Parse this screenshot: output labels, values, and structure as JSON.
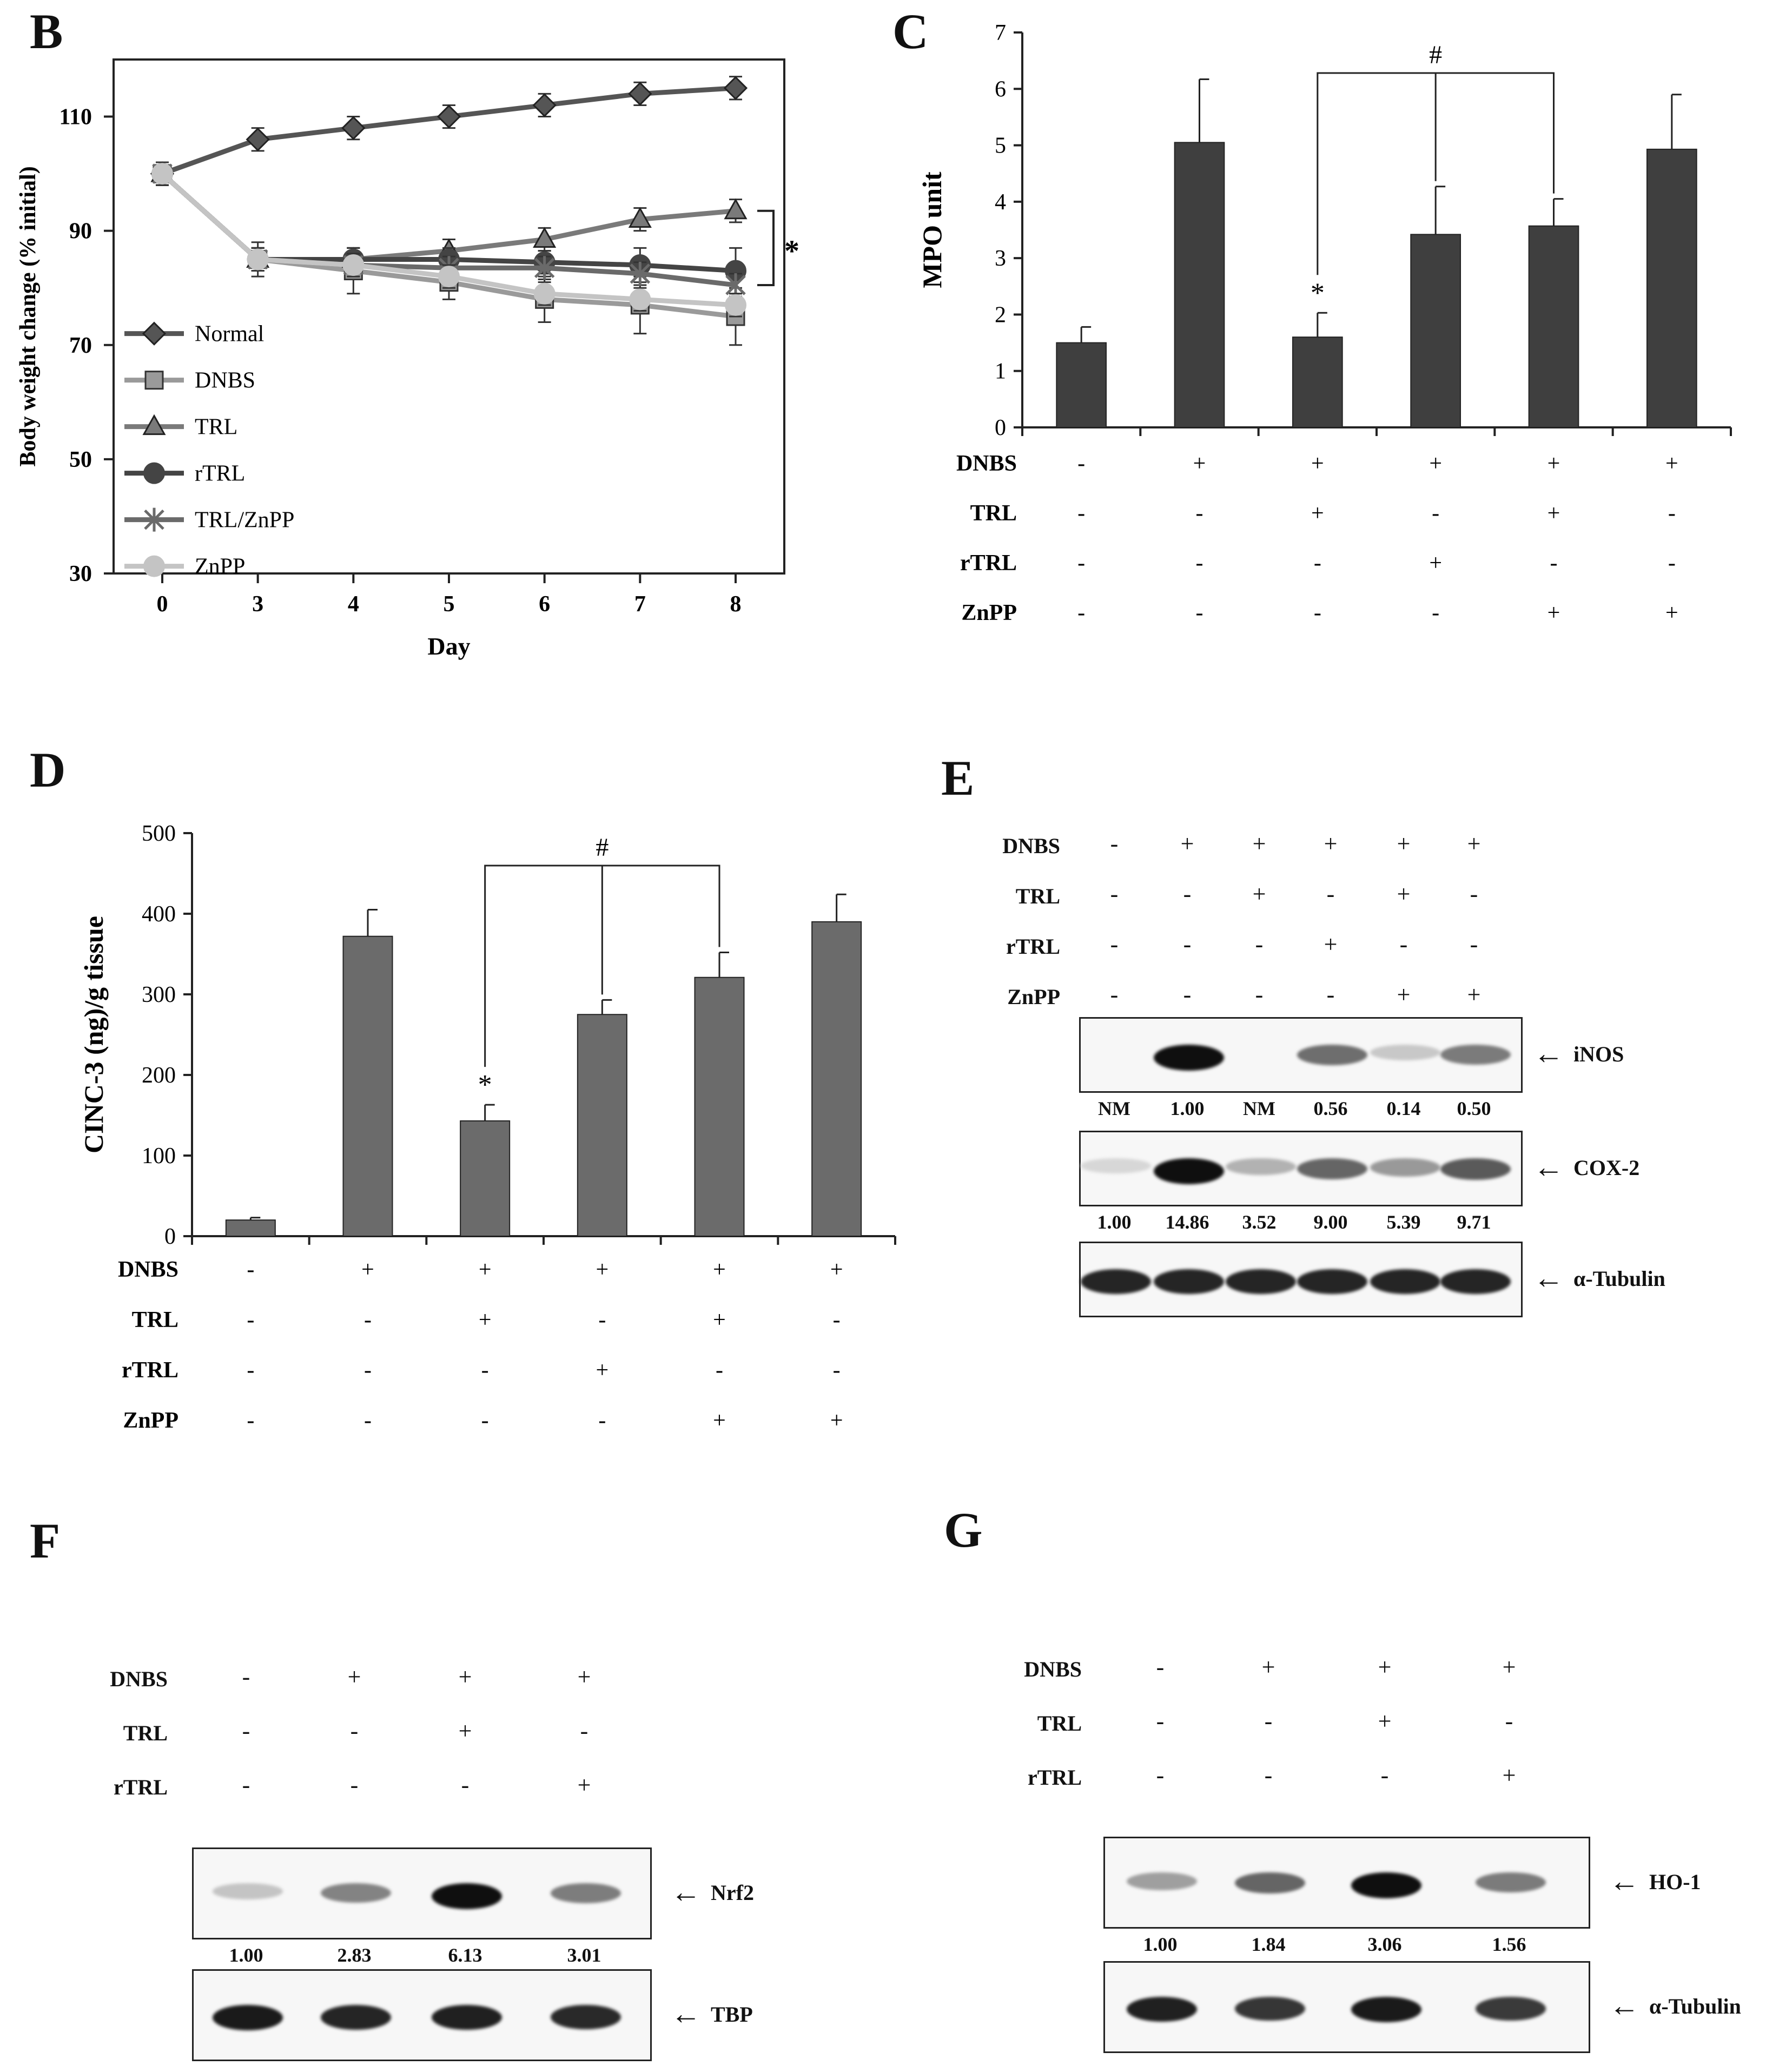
{
  "panels": {
    "B": "B",
    "C": "C",
    "D": "D",
    "E": "E",
    "F": "F",
    "G": "G"
  },
  "chart_data": [
    {
      "id": "B",
      "type": "line",
      "xlabel": "Day",
      "ylabel": "Body weight change (% initial)",
      "categories": [
        "0",
        "3",
        "4",
        "5",
        "6",
        "7",
        "8"
      ],
      "ylim": [
        30,
        120
      ],
      "yticks": [
        30,
        50,
        70,
        90,
        110
      ],
      "significance": "*",
      "legend_position": "bottom-left",
      "series": [
        {
          "name": "Normal",
          "color": "#555555",
          "marker": "diamond",
          "values": [
            100,
            106,
            108,
            110,
            112,
            114,
            115
          ],
          "errors": [
            2,
            2,
            2,
            2,
            2,
            2,
            2
          ]
        },
        {
          "name": "DNBS",
          "color": "#9a9a9a",
          "marker": "square",
          "values": [
            100,
            85,
            83,
            81,
            78,
            77,
            75
          ],
          "errors": [
            2,
            3,
            4,
            3,
            4,
            5,
            5
          ]
        },
        {
          "name": "TRL",
          "color": "#7a7a7a",
          "marker": "triangle",
          "values": [
            100,
            85,
            85,
            86.5,
            88.5,
            92,
            93.5
          ],
          "errors": [
            2,
            2,
            2,
            2,
            2,
            2,
            2
          ]
        },
        {
          "name": "rTRL",
          "color": "#444444",
          "marker": "circle",
          "values": [
            100,
            85,
            85,
            85,
            84.5,
            84,
            83
          ],
          "errors": [
            2,
            2,
            2,
            2,
            2,
            3,
            4
          ]
        },
        {
          "name": "TRL/ZnPP",
          "color": "#6a6a6a",
          "marker": "star",
          "values": [
            100,
            85,
            84,
            83.5,
            83.5,
            82.5,
            80.5
          ],
          "errors": [
            2,
            2,
            2,
            2,
            2,
            2,
            2
          ]
        },
        {
          "name": "ZnPP",
          "color": "#c4c4c4",
          "marker": "circle",
          "values": [
            100,
            85,
            84,
            82,
            79,
            78,
            77
          ],
          "errors": [
            2,
            2,
            2,
            2,
            2,
            2,
            2
          ]
        }
      ]
    },
    {
      "id": "C",
      "type": "bar",
      "ylabel": "MPO unit",
      "ylim": [
        0,
        7
      ],
      "yticks": [
        0,
        1,
        2,
        3,
        4,
        5,
        6,
        7
      ],
      "values": [
        1.5,
        5.05,
        1.6,
        3.42,
        3.57,
        4.93
      ],
      "errors": [
        0.28,
        1.12,
        0.43,
        0.85,
        0.48,
        0.97
      ],
      "bar_color": "#3f3f3f",
      "annotations": {
        "star": "*",
        "star_index": 2,
        "hash": "#",
        "bracket_from": 2,
        "bracket_to": [
          3,
          4
        ]
      },
      "treatment_table": {
        "rows": [
          {
            "label": "DNBS",
            "signs": [
              "-",
              "+",
              "+",
              "+",
              "+",
              "+"
            ]
          },
          {
            "label": "TRL",
            "signs": [
              "-",
              "-",
              "+",
              "-",
              "+",
              "-"
            ]
          },
          {
            "label": "rTRL",
            "signs": [
              "-",
              "-",
              "-",
              "+",
              "-",
              "-"
            ]
          },
          {
            "label": "ZnPP",
            "signs": [
              "-",
              "-",
              "-",
              "-",
              "+",
              "+"
            ]
          }
        ]
      }
    },
    {
      "id": "D",
      "type": "bar",
      "ylabel": "CINC-3 (ng)/g tissue",
      "ylim": [
        0,
        500
      ],
      "yticks": [
        0,
        100,
        200,
        300,
        400,
        500
      ],
      "values": [
        20,
        372,
        143,
        275,
        321,
        390
      ],
      "errors": [
        3,
        33,
        20,
        18,
        31,
        34
      ],
      "bar_color": "#6b6b6b",
      "annotations": {
        "star": "*",
        "star_index": 2,
        "hash": "#",
        "bracket_from": 2,
        "bracket_to": [
          3,
          4
        ]
      },
      "treatment_table": {
        "rows": [
          {
            "label": "DNBS",
            "signs": [
              "-",
              "+",
              "+",
              "+",
              "+",
              "+"
            ]
          },
          {
            "label": "TRL",
            "signs": [
              "-",
              "-",
              "+",
              "-",
              "+",
              "-"
            ]
          },
          {
            "label": "rTRL",
            "signs": [
              "-",
              "-",
              "-",
              "+",
              "-",
              "-"
            ]
          },
          {
            "label": "ZnPP",
            "signs": [
              "-",
              "-",
              "-",
              "-",
              "+",
              "+"
            ]
          }
        ]
      }
    }
  ],
  "blots": {
    "E": {
      "rows": [
        {
          "label": "DNBS",
          "signs": [
            "-",
            "+",
            "+",
            "+",
            "+",
            "+"
          ]
        },
        {
          "label": "TRL",
          "signs": [
            "-",
            "-",
            "+",
            "-",
            "+",
            "-"
          ]
        },
        {
          "label": "rTRL",
          "signs": [
            "-",
            "-",
            "-",
            "+",
            "-",
            "-"
          ]
        },
        {
          "label": "ZnPP",
          "signs": [
            "-",
            "-",
            "-",
            "-",
            "+",
            "+"
          ]
        }
      ],
      "bands": [
        {
          "name": "iNOS",
          "quant": [
            "NM",
            "1.00",
            "NM",
            "0.56",
            "0.14",
            "0.50"
          ],
          "intensity": [
            0,
            1.0,
            0,
            0.56,
            0.14,
            0.5
          ]
        },
        {
          "name": "COX-2",
          "quant": [
            "1.00",
            "14.86",
            "3.52",
            "9.00",
            "5.39",
            "9.71"
          ],
          "intensity": [
            0.07,
            1.0,
            0.24,
            0.6,
            0.36,
            0.65
          ]
        },
        {
          "name": "α-Tubulin",
          "quant": [],
          "intensity": [
            0.9,
            0.9,
            0.9,
            0.9,
            0.9,
            0.9
          ]
        }
      ]
    },
    "F": {
      "rows": [
        {
          "label": "DNBS",
          "signs": [
            "-",
            "+",
            "+",
            "+"
          ]
        },
        {
          "label": "TRL",
          "signs": [
            "-",
            "-",
            "+",
            "-"
          ]
        },
        {
          "label": "rTRL",
          "signs": [
            "-",
            "-",
            "-",
            "+"
          ]
        }
      ],
      "bands": [
        {
          "name": "Nrf2",
          "quant": [
            "1.00",
            "2.83",
            "6.13",
            "3.01"
          ],
          "intensity": [
            0.16,
            0.46,
            1.0,
            0.49
          ]
        },
        {
          "name": "TBP",
          "quant": [],
          "intensity": [
            0.95,
            0.9,
            0.92,
            0.88
          ]
        }
      ]
    },
    "G": {
      "rows": [
        {
          "label": "DNBS",
          "signs": [
            "-",
            "+",
            "+",
            "+"
          ]
        },
        {
          "label": "TRL",
          "signs": [
            "-",
            "-",
            "+",
            "-"
          ]
        },
        {
          "label": "rTRL",
          "signs": [
            "-",
            "-",
            "-",
            "+"
          ]
        }
      ],
      "bands": [
        {
          "name": "HO-1",
          "quant": [
            "1.00",
            "1.84",
            "3.06",
            "1.56"
          ],
          "intensity": [
            0.33,
            0.6,
            1.0,
            0.5
          ]
        },
        {
          "name": "α-Tubulin",
          "quant": [],
          "intensity": [
            0.92,
            0.82,
            0.95,
            0.8
          ]
        }
      ]
    }
  }
}
